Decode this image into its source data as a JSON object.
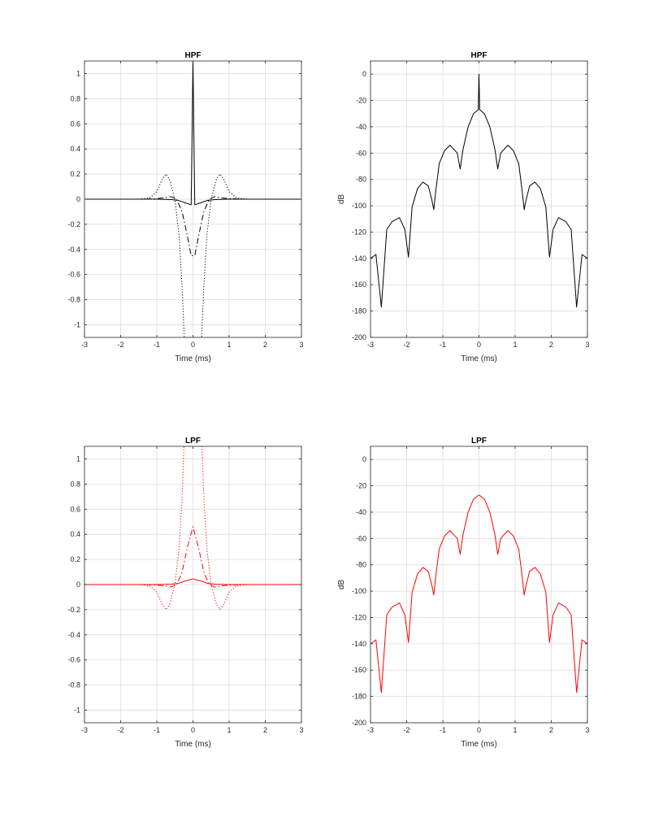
{
  "chart_data": [
    {
      "type": "line",
      "title": "HPF",
      "xlabel": "Time (ms)",
      "ylabel": "",
      "xlim": [
        -3,
        3
      ],
      "ylim": [
        -1.1,
        1.1
      ],
      "xticks": [
        -3,
        -2,
        -1,
        0,
        1,
        2,
        3
      ],
      "yticks": [
        -1,
        -0.8,
        -0.6,
        -0.4,
        -0.2,
        0,
        0.2,
        0.4,
        0.6,
        0.8,
        1
      ],
      "grid": true,
      "color": "#000000",
      "series": [
        {
          "style": "dotted",
          "x": [
            -1.5,
            -1.2,
            -1.0,
            -0.85,
            -0.75,
            -0.65,
            -0.5,
            -0.38,
            -0.3,
            -0.24,
            -0.05,
            0.05,
            0.24,
            0.3,
            0.38,
            0.5,
            0.65,
            0.75,
            0.85,
            1.0,
            1.2,
            1.5
          ],
          "y": [
            0,
            0.01,
            0.06,
            0.16,
            0.2,
            0.16,
            0.0,
            -0.3,
            -0.7,
            -1.1,
            -1.1,
            -1.1,
            -1.1,
            -0.7,
            -0.3,
            0.0,
            0.16,
            0.2,
            0.16,
            0.06,
            0.01,
            0
          ]
        },
        {
          "style": "dashdot",
          "x": [
            -1.3,
            -1.0,
            -0.8,
            -0.6,
            -0.45,
            -0.3,
            -0.15,
            -0.05,
            0.05,
            0.15,
            0.3,
            0.45,
            0.6,
            0.8,
            1.0,
            1.3
          ],
          "y": [
            0,
            0.005,
            0.01,
            0.02,
            0.0,
            -0.1,
            -0.3,
            -0.45,
            -0.45,
            -0.3,
            -0.1,
            0.0,
            0.02,
            0.01,
            0.005,
            0
          ]
        },
        {
          "style": "solid",
          "x": [
            -3,
            -1.0,
            -0.6,
            -0.4,
            -0.2,
            -0.05,
            0,
            0.05,
            0.2,
            0.4,
            0.6,
            1.0,
            3
          ],
          "y": [
            0,
            0,
            -0.003,
            -0.01,
            -0.03,
            -0.045,
            1.1,
            -0.045,
            -0.03,
            -0.01,
            -0.003,
            0,
            0
          ]
        }
      ]
    },
    {
      "type": "line",
      "title": "HPF",
      "xlabel": "Time (ms)",
      "ylabel": "dB",
      "xlim": [
        -3,
        3
      ],
      "ylim": [
        -200,
        10
      ],
      "xticks": [
        -3,
        -2,
        -1,
        0,
        1,
        2,
        3
      ],
      "yticks": [
        -200,
        -180,
        -160,
        -140,
        -120,
        -100,
        -80,
        -60,
        -40,
        -20,
        0
      ],
      "grid": true,
      "color": "#000000",
      "series": [
        {
          "style": "solid",
          "x": [
            -3.0,
            -2.85,
            -2.7,
            -2.55,
            -2.4,
            -2.2,
            -2.05,
            -1.95,
            -1.85,
            -1.7,
            -1.55,
            -1.4,
            -1.3,
            -1.25,
            -1.2,
            -1.1,
            -0.95,
            -0.8,
            -0.6,
            -0.52,
            -0.44,
            -0.3,
            -0.15,
            -0.02,
            0.0,
            0.02,
            0.15,
            0.3,
            0.44,
            0.52,
            0.6,
            0.8,
            0.95,
            1.1,
            1.2,
            1.25,
            1.3,
            1.4,
            1.55,
            1.7,
            1.85,
            1.95,
            2.05,
            2.2,
            2.4,
            2.55,
            2.7,
            2.85,
            3.0
          ],
          "y": [
            -140,
            -137,
            -177,
            -118,
            -112,
            -109,
            -118,
            -139,
            -101,
            -87,
            -82,
            -85,
            -96,
            -103,
            -90,
            -68,
            -58,
            -54,
            -60,
            -72,
            -57,
            -40,
            -30,
            -27,
            0,
            -27,
            -30,
            -40,
            -57,
            -72,
            -60,
            -54,
            -58,
            -68,
            -90,
            -103,
            -96,
            -85,
            -82,
            -87,
            -101,
            -139,
            -118,
            -109,
            -112,
            -118,
            -177,
            -137,
            -140
          ]
        }
      ]
    },
    {
      "type": "line",
      "title": "LPF",
      "xlabel": "Time (ms)",
      "ylabel": "",
      "xlim": [
        -3,
        3
      ],
      "ylim": [
        -1.1,
        1.1
      ],
      "xticks": [
        -3,
        -2,
        -1,
        0,
        1,
        2,
        3
      ],
      "yticks": [
        -1,
        -0.8,
        -0.6,
        -0.4,
        -0.2,
        0,
        0.2,
        0.4,
        0.6,
        0.8,
        1
      ],
      "grid": true,
      "color": "#ff0000",
      "series": [
        {
          "style": "dotted",
          "x": [
            -1.5,
            -1.2,
            -1.0,
            -0.85,
            -0.75,
            -0.65,
            -0.5,
            -0.38,
            -0.3,
            -0.25,
            0.25,
            0.3,
            0.38,
            0.5,
            0.65,
            0.75,
            0.85,
            1.0,
            1.2,
            1.5
          ],
          "y": [
            0,
            -0.01,
            -0.06,
            -0.16,
            -0.2,
            -0.16,
            0.0,
            0.3,
            0.7,
            1.1,
            1.1,
            0.7,
            0.3,
            0.0,
            -0.16,
            -0.2,
            -0.16,
            -0.06,
            -0.01,
            0
          ]
        },
        {
          "style": "dashdot",
          "x": [
            -1.3,
            -1.0,
            -0.8,
            -0.6,
            -0.45,
            -0.3,
            -0.15,
            0.0,
            0.15,
            0.3,
            0.45,
            0.6,
            0.8,
            1.0,
            1.3
          ],
          "y": [
            0,
            -0.005,
            -0.01,
            -0.02,
            0.0,
            0.1,
            0.3,
            0.46,
            0.3,
            0.1,
            0.0,
            -0.02,
            -0.01,
            -0.005,
            0
          ]
        },
        {
          "style": "solid",
          "x": [
            -3,
            -1.0,
            -0.6,
            -0.4,
            -0.2,
            0,
            0.2,
            0.4,
            0.6,
            1.0,
            3
          ],
          "y": [
            0,
            0,
            0.003,
            0.01,
            0.03,
            0.045,
            0.03,
            0.01,
            0.003,
            0,
            0
          ]
        }
      ]
    },
    {
      "type": "line",
      "title": "LPF",
      "xlabel": "Time (ms)",
      "ylabel": "dB",
      "xlim": [
        -3,
        3
      ],
      "ylim": [
        -200,
        10
      ],
      "xticks": [
        -3,
        -2,
        -1,
        0,
        1,
        2,
        3
      ],
      "yticks": [
        -200,
        -180,
        -160,
        -140,
        -120,
        -100,
        -80,
        -60,
        -40,
        -20,
        0
      ],
      "grid": true,
      "color": "#ff0000",
      "series": [
        {
          "style": "solid",
          "x": [
            -3.0,
            -2.85,
            -2.7,
            -2.55,
            -2.4,
            -2.2,
            -2.05,
            -1.95,
            -1.85,
            -1.7,
            -1.55,
            -1.4,
            -1.3,
            -1.25,
            -1.2,
            -1.1,
            -0.95,
            -0.8,
            -0.6,
            -0.52,
            -0.44,
            -0.3,
            -0.15,
            0.0,
            0.15,
            0.3,
            0.44,
            0.52,
            0.6,
            0.8,
            0.95,
            1.1,
            1.2,
            1.25,
            1.3,
            1.4,
            1.55,
            1.7,
            1.85,
            1.95,
            2.05,
            2.2,
            2.4,
            2.55,
            2.7,
            2.85,
            3.0
          ],
          "y": [
            -140,
            -137,
            -177,
            -118,
            -112,
            -109,
            -118,
            -139,
            -101,
            -87,
            -82,
            -85,
            -96,
            -103,
            -90,
            -68,
            -58,
            -54,
            -60,
            -72,
            -57,
            -40,
            -30,
            -27,
            -30,
            -40,
            -57,
            -72,
            -60,
            -54,
            -58,
            -68,
            -90,
            -103,
            -96,
            -85,
            -82,
            -87,
            -101,
            -139,
            -118,
            -109,
            -112,
            -118,
            -177,
            -137,
            -140
          ]
        }
      ]
    }
  ]
}
